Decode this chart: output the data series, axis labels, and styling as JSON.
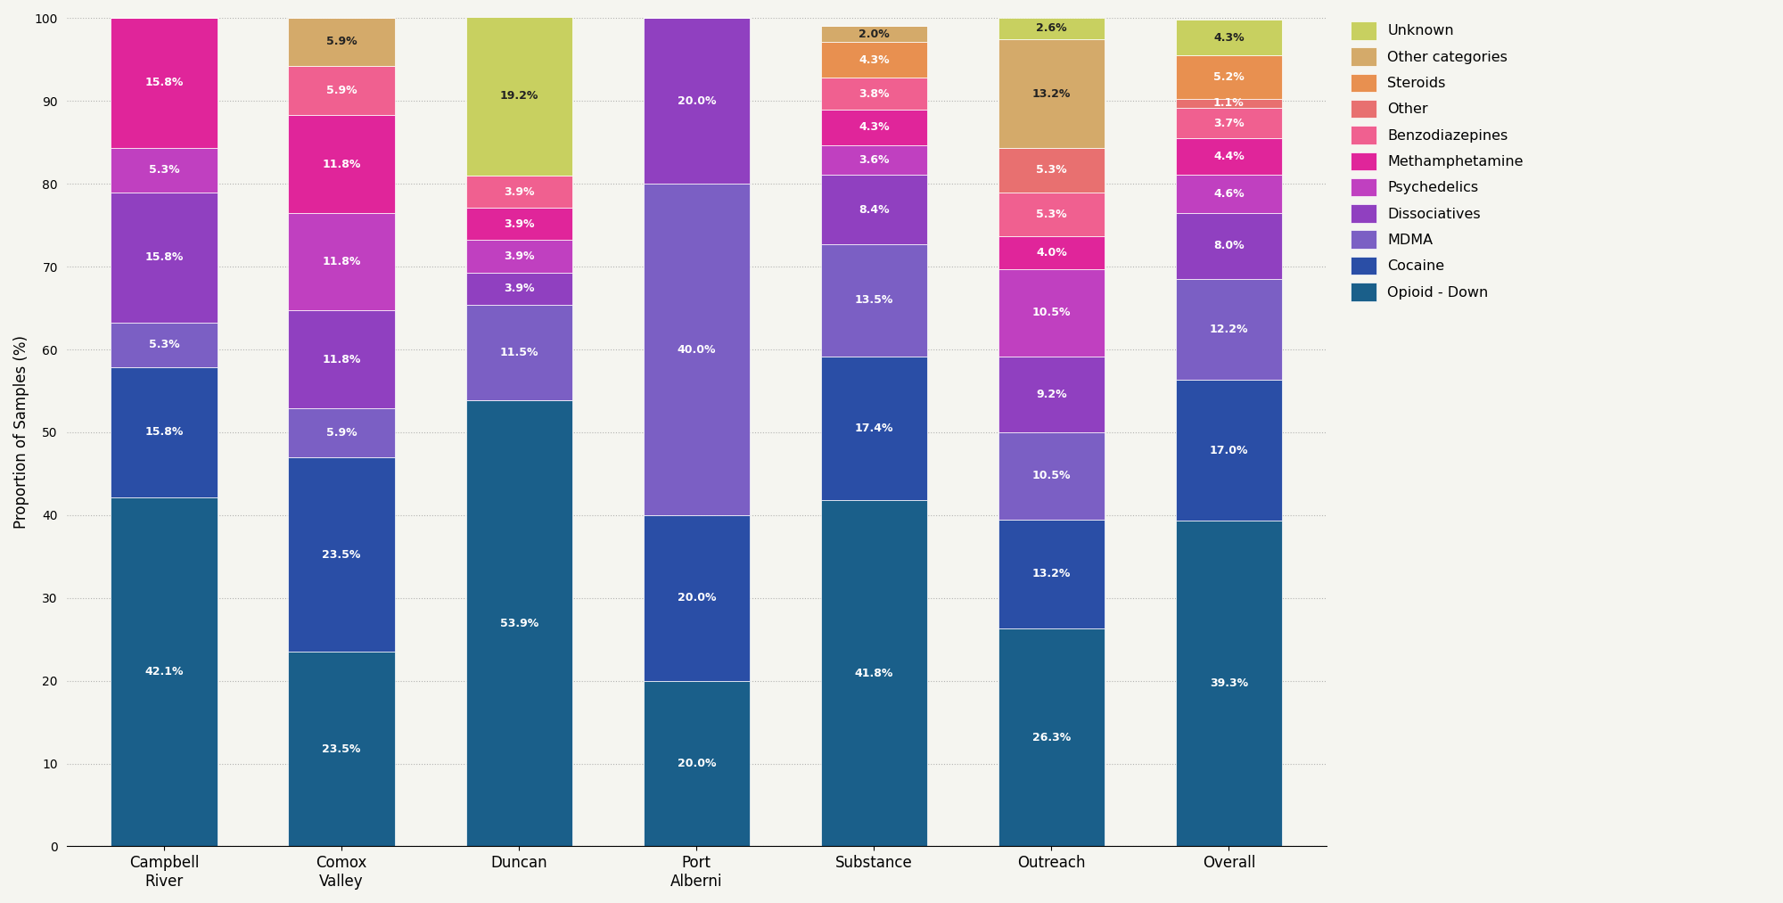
{
  "categories": [
    "Campbell\nRiver",
    "Comox\nValley",
    "Duncan",
    "Port\nAlberni",
    "Substance",
    "Outreach",
    "Overall"
  ],
  "drug_labels": [
    "Opioid - Down",
    "Cocaine",
    "MDMA",
    "Dissociatives",
    "Psychedelics",
    "Methamphetamine",
    "Benzodiazepines",
    "Other",
    "Steroids",
    "Other categories",
    "Unknown"
  ],
  "colors": [
    "#1a5f8a",
    "#2a4ea6",
    "#7b5fc4",
    "#9040c0",
    "#c040c0",
    "#e0259a",
    "#f06090",
    "#e87070",
    "#e89050",
    "#d4aa6a",
    "#c8d060"
  ],
  "values": {
    "Campbell\nRiver": [
      42.1,
      15.8,
      5.3,
      15.8,
      5.3,
      15.8,
      0.0,
      0.0,
      0.0,
      0.0,
      0.0
    ],
    "Comox\nValley": [
      23.5,
      23.5,
      5.9,
      11.8,
      11.8,
      11.8,
      5.9,
      0.0,
      0.0,
      5.9,
      0.0
    ],
    "Duncan": [
      53.9,
      0.0,
      11.5,
      3.9,
      3.9,
      3.9,
      3.9,
      0.0,
      0.0,
      0.0,
      19.2
    ],
    "Port\nAlberni": [
      20.0,
      20.0,
      40.0,
      20.0,
      0.0,
      0.0,
      0.0,
      0.0,
      0.0,
      0.0,
      0.0
    ],
    "Substance": [
      41.8,
      17.4,
      13.5,
      8.4,
      3.6,
      4.3,
      3.8,
      0.0,
      4.3,
      2.0,
      0.0
    ],
    "Outreach": [
      26.3,
      13.2,
      10.5,
      9.2,
      10.5,
      4.0,
      5.3,
      5.3,
      0.0,
      13.2,
      2.6
    ],
    "Overall": [
      39.3,
      17.0,
      12.2,
      8.0,
      4.6,
      4.4,
      3.7,
      1.1,
      5.2,
      0.0,
      4.3
    ]
  },
  "ylabel": "Proportion of Samples (%)",
  "ylim": [
    0,
    100
  ],
  "yticks": [
    0,
    10,
    20,
    30,
    40,
    50,
    60,
    70,
    80,
    90,
    100
  ],
  "min_label_pct": 1.0,
  "bg_color": "#f5f5f0",
  "figsize": [
    20.0,
    10.13
  ],
  "dpi": 100
}
